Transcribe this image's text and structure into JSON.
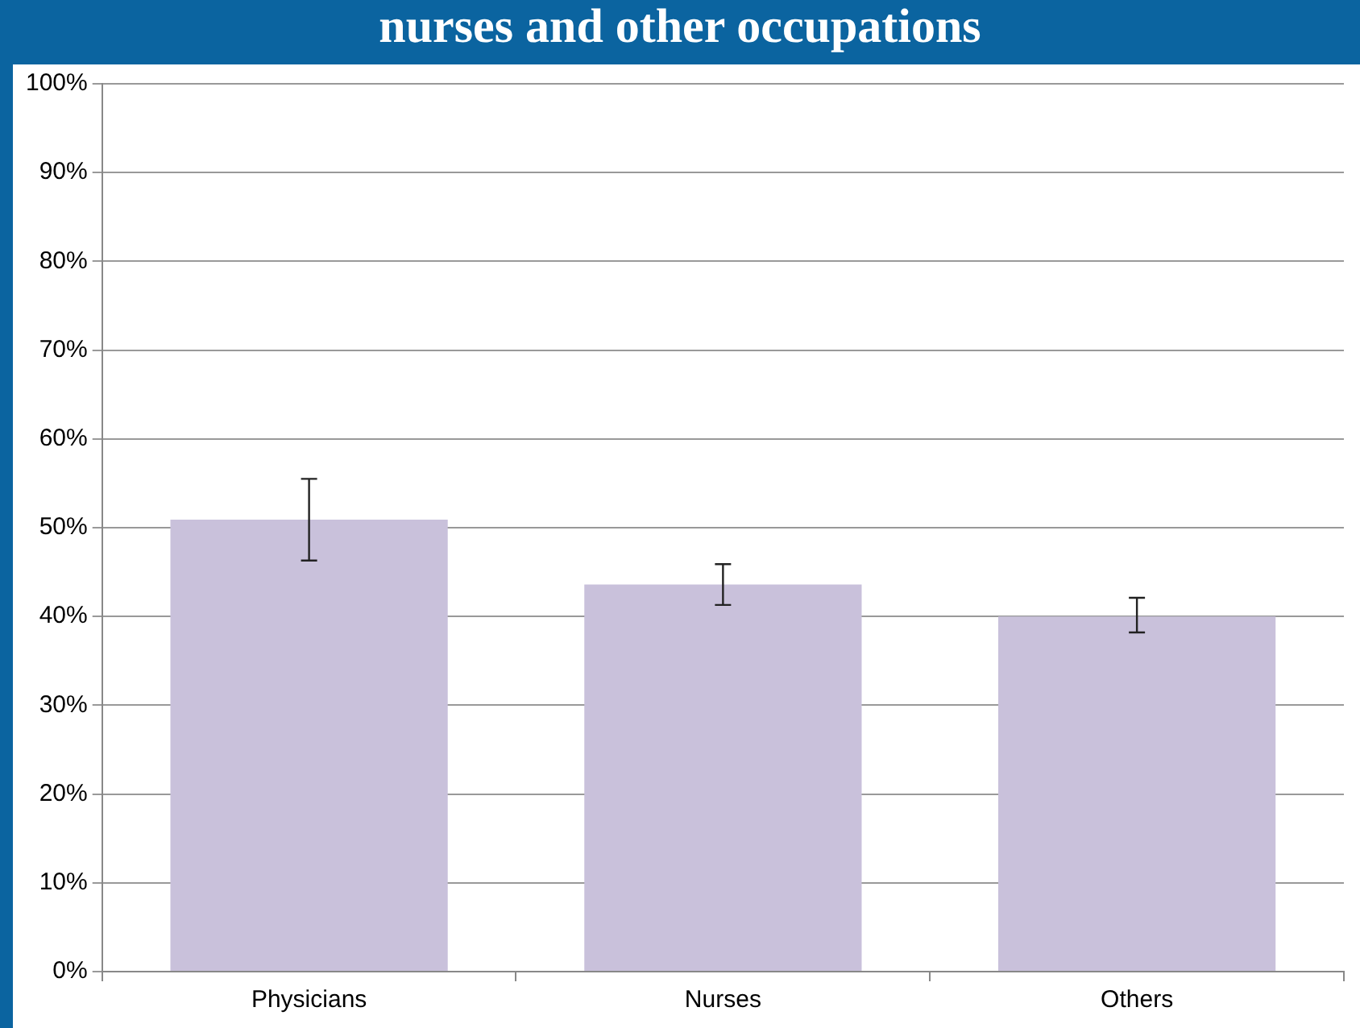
{
  "chart_data": {
    "type": "bar",
    "title": "nurses and other occupations",
    "categories": [
      "Physicians",
      "Nurses",
      "Others"
    ],
    "values": [
      50.9,
      43.6,
      40.0
    ],
    "errors": [
      [
        46.3,
        55.5
      ],
      [
        41.3,
        45.9
      ],
      [
        38.2,
        42.1
      ]
    ],
    "color": "#c9c1db",
    "ylim": [
      0,
      100
    ],
    "yticks": [
      {
        "value": 0,
        "label": "0%"
      },
      {
        "value": 10,
        "label": "10%"
      },
      {
        "value": 20,
        "label": "20%"
      },
      {
        "value": 30,
        "label": "30%"
      },
      {
        "value": 40,
        "label": "40%"
      },
      {
        "value": 50,
        "label": "50%"
      },
      {
        "value": 60,
        "label": "60%"
      },
      {
        "value": 70,
        "label": "70%"
      },
      {
        "value": 80,
        "label": "80%"
      },
      {
        "value": 90,
        "label": "90%"
      },
      {
        "value": 100,
        "label": "100%"
      }
    ],
    "grid": "y",
    "legend": false
  }
}
